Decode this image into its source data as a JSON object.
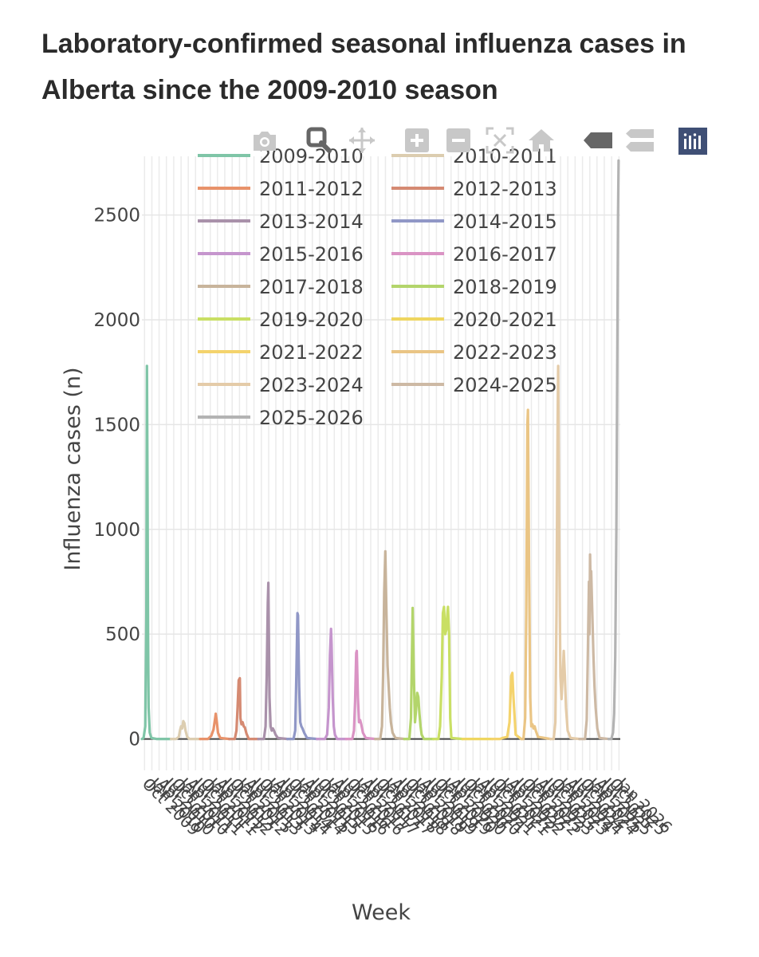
{
  "page_title": "Laboratory-confirmed seasonal influenza cases in Alberta since the 2009-2010 season",
  "modebar": [
    {
      "name": "camera-icon",
      "label": "Download plot as a png"
    },
    {
      "name": "zoom-icon",
      "label": "Zoom"
    },
    {
      "name": "pan-icon",
      "label": "Pan"
    },
    {
      "name": "zoom-in-icon",
      "label": "Zoom in"
    },
    {
      "name": "zoom-out-icon",
      "label": "Zoom out"
    },
    {
      "name": "autoscale-icon",
      "label": "Autoscale"
    },
    {
      "name": "home-icon",
      "label": "Reset axes"
    },
    {
      "name": "spike-closest-icon",
      "label": "Show closest data on hover"
    },
    {
      "name": "spike-compare-icon",
      "label": "Compare data on hover"
    },
    {
      "name": "plotly-logo-icon",
      "label": "Produced with Plotly"
    }
  ],
  "colors": {
    "2009-2010": "#7fc5a7",
    "2010-2011": "#dccdb0",
    "2011-2012": "#e8926a",
    "2012-2013": "#d58a72",
    "2013-2014": "#a991aa",
    "2014-2015": "#9097c6",
    "2015-2016": "#c595cd",
    "2016-2017": "#da93c4",
    "2017-2018": "#c8b49b",
    "2018-2019": "#b3d56b",
    "2019-2020": "#c9df64",
    "2020-2021": "#efd660",
    "2021-2022": "#f4d36c",
    "2022-2023": "#eac585",
    "2023-2024": "#e4cba8",
    "2024-2025": "#cdb9a4",
    "2025-2026": "#b3b3b3"
  },
  "chart_data": {
    "type": "line",
    "title": "",
    "xlabel": "Week",
    "ylabel": "Influenza cases (n)",
    "ylim": [
      -150,
      2780
    ],
    "yticks": [
      0,
      500,
      1000,
      1500,
      2000,
      2500
    ],
    "xlim": [
      "2009-08-29",
      "2026-01-17"
    ],
    "grid": true,
    "legend_position": "top-left (inside plot), two columns",
    "x_tick_labels": [
      "Oct 2009",
      "Jan 2010",
      "Apr 2010",
      "Jul 2010",
      "Oct 2010",
      "Jan 2011",
      "Apr 2011",
      "Jul 2011",
      "Oct 2011",
      "Jan 2012",
      "Apr 2012",
      "Jul 2012",
      "Oct 2012",
      "Jan 2013",
      "Apr 2013",
      "Jul 2013",
      "Oct 2013",
      "Jan 2014",
      "Apr 2014",
      "Jul 2014",
      "Oct 2014",
      "Jan 2015",
      "Apr 2015",
      "Jul 2015",
      "Oct 2015",
      "Jan 2016",
      "Apr 2016",
      "Jul 2016",
      "Oct 2016",
      "Jan 2017",
      "Apr 2017",
      "Jul 2017",
      "Oct 2017",
      "Jan 2018",
      "Apr 2018",
      "Jul 2018",
      "Oct 2018",
      "Jan 2019",
      "Apr 2019",
      "Jul 2019",
      "Oct 2019",
      "Jan 2020",
      "Apr 2020",
      "Jul 2020",
      "Oct 2020",
      "Jan 2021",
      "Apr 2021",
      "Jul 2021",
      "Oct 2021",
      "Jan 2022",
      "Apr 2022",
      "Jul 2022",
      "Oct 2022",
      "Jan 2023",
      "Apr 2023",
      "Jul 2023",
      "Oct 2023",
      "Jan 2024",
      "Apr 2024",
      "Jul 2024",
      "Oct 2024",
      "Jan 2025",
      "Apr 2025",
      "Jul 2025",
      "Oct 2025",
      "Jan 2026"
    ],
    "series": [
      {
        "name": "2009-2010",
        "x": [
          "2009-08-29",
          "2009-09-19",
          "2009-10-10",
          "2009-10-24",
          "2009-10-31",
          "2009-11-07",
          "2009-11-14",
          "2009-11-21",
          "2009-12-05",
          "2009-12-26",
          "2010-02-27",
          "2010-06-26",
          "2010-08-28"
        ],
        "y": [
          0,
          5,
          60,
          600,
          1780,
          1200,
          500,
          150,
          30,
          5,
          0,
          0,
          0
        ]
      },
      {
        "name": "2010-2011",
        "x": [
          "2010-08-28",
          "2010-10-30",
          "2010-12-04",
          "2010-12-18",
          "2011-01-01",
          "2011-01-15",
          "2011-01-29",
          "2011-02-12",
          "2011-02-26",
          "2011-03-19",
          "2011-04-16",
          "2011-08-27"
        ],
        "y": [
          0,
          0,
          10,
          40,
          60,
          50,
          85,
          75,
          40,
          10,
          0,
          0
        ]
      },
      {
        "name": "2011-2012",
        "x": [
          "2011-08-27",
          "2011-12-03",
          "2012-01-14",
          "2012-02-11",
          "2012-03-03",
          "2012-03-10",
          "2012-03-24",
          "2012-04-07",
          "2012-05-05",
          "2012-08-25"
        ],
        "y": [
          0,
          0,
          15,
          45,
          100,
          120,
          80,
          30,
          5,
          0
        ]
      },
      {
        "name": "2012-2013",
        "x": [
          "2012-08-25",
          "2012-11-03",
          "2012-11-24",
          "2012-12-08",
          "2012-12-22",
          "2013-01-05",
          "2013-01-12",
          "2013-01-26",
          "2013-02-09",
          "2013-02-23",
          "2013-03-09",
          "2013-03-30",
          "2013-04-27",
          "2013-08-24"
        ],
        "y": [
          0,
          0,
          40,
          150,
          280,
          290,
          100,
          70,
          80,
          60,
          55,
          25,
          0,
          0
        ]
      },
      {
        "name": "2013-2014",
        "x": [
          "2013-08-24",
          "2013-11-02",
          "2013-11-23",
          "2013-12-07",
          "2013-12-21",
          "2013-12-28",
          "2014-01-11",
          "2014-01-25",
          "2014-02-08",
          "2014-02-22",
          "2014-03-08",
          "2014-03-29",
          "2014-04-26",
          "2014-08-23"
        ],
        "y": [
          0,
          0,
          60,
          300,
          650,
          745,
          200,
          60,
          40,
          50,
          40,
          20,
          5,
          0
        ]
      },
      {
        "name": "2014-2015",
        "x": [
          "2014-08-23",
          "2014-11-08",
          "2014-11-29",
          "2014-12-13",
          "2014-12-27",
          "2015-01-03",
          "2015-01-17",
          "2015-01-31",
          "2015-02-14",
          "2015-02-28",
          "2015-03-21",
          "2015-04-25",
          "2015-08-29"
        ],
        "y": [
          0,
          0,
          40,
          300,
          600,
          590,
          250,
          80,
          60,
          50,
          30,
          5,
          0
        ]
      },
      {
        "name": "2015-2016",
        "x": [
          "2015-08-29",
          "2015-12-05",
          "2016-01-02",
          "2016-01-23",
          "2016-02-06",
          "2016-02-20",
          "2016-02-27",
          "2016-03-12",
          "2016-03-26",
          "2016-04-09",
          "2016-05-07",
          "2016-08-27"
        ],
        "y": [
          0,
          0,
          20,
          150,
          400,
          525,
          450,
          200,
          60,
          20,
          0,
          0
        ]
      },
      {
        "name": "2016-2017",
        "x": [
          "2016-08-27",
          "2016-11-12",
          "2016-12-03",
          "2016-12-17",
          "2016-12-31",
          "2017-01-07",
          "2017-01-21",
          "2017-02-04",
          "2017-02-18",
          "2017-03-04",
          "2017-03-25",
          "2017-04-29",
          "2017-08-26"
        ],
        "y": [
          0,
          0,
          40,
          180,
          410,
          420,
          200,
          80,
          90,
          70,
          30,
          5,
          0
        ]
      },
      {
        "name": "2017-2018",
        "x": [
          "2017-08-26",
          "2017-10-28",
          "2017-11-18",
          "2017-12-02",
          "2017-12-16",
          "2017-12-30",
          "2018-01-13",
          "2018-01-27",
          "2018-02-10",
          "2018-02-24",
          "2018-03-10",
          "2018-03-31",
          "2018-05-05",
          "2018-08-25"
        ],
        "y": [
          0,
          0,
          60,
          300,
          700,
          895,
          600,
          350,
          250,
          150,
          80,
          30,
          5,
          0
        ]
      },
      {
        "name": "2018-2019",
        "x": [
          "2018-08-25",
          "2018-10-27",
          "2018-11-17",
          "2018-12-01",
          "2018-12-08",
          "2018-12-22",
          "2019-01-05",
          "2019-01-19",
          "2019-02-02",
          "2019-02-16",
          "2019-03-02",
          "2019-03-16",
          "2019-03-30",
          "2019-04-27",
          "2019-08-24"
        ],
        "y": [
          0,
          0,
          100,
          450,
          625,
          300,
          80,
          140,
          220,
          200,
          120,
          60,
          20,
          0,
          0
        ]
      },
      {
        "name": "2019-2020",
        "x": [
          "2019-08-24",
          "2019-10-26",
          "2019-11-16",
          "2019-12-07",
          "2019-12-21",
          "2020-01-04",
          "2020-01-18",
          "2020-02-01",
          "2020-02-15",
          "2020-02-22",
          "2020-03-07",
          "2020-03-21",
          "2020-04-04",
          "2020-08-22"
        ],
        "y": [
          0,
          0,
          60,
          300,
          600,
          630,
          500,
          520,
          600,
          630,
          500,
          100,
          5,
          0
        ]
      },
      {
        "name": "2020-2021",
        "x": [
          "2020-08-22",
          "2021-08-28"
        ],
        "y": [
          0,
          0
        ]
      },
      {
        "name": "2021-2022",
        "x": [
          "2021-08-28",
          "2021-12-04",
          "2022-01-08",
          "2022-03-05",
          "2022-04-02",
          "2022-04-23",
          "2022-05-07",
          "2022-05-21",
          "2022-06-18",
          "2022-08-27"
        ],
        "y": [
          0,
          0,
          5,
          10,
          80,
          300,
          315,
          200,
          20,
          0
        ]
      },
      {
        "name": "2022-2023",
        "x": [
          "2022-08-27",
          "2022-09-24",
          "2022-10-15",
          "2022-10-29",
          "2022-11-12",
          "2022-11-19",
          "2022-12-03",
          "2022-12-17",
          "2022-12-31",
          "2023-01-14",
          "2023-01-28",
          "2023-02-11",
          "2023-02-25",
          "2023-03-25",
          "2023-08-26"
        ],
        "y": [
          0,
          0,
          100,
          600,
          1500,
          1570,
          800,
          200,
          60,
          70,
          50,
          60,
          40,
          10,
          0
        ]
      },
      {
        "name": "2023-2024",
        "x": [
          "2023-08-26",
          "2023-10-07",
          "2023-10-28",
          "2023-11-11",
          "2023-11-25",
          "2023-12-02",
          "2023-12-16",
          "2023-12-30",
          "2024-01-13",
          "2024-01-27",
          "2024-02-10",
          "2024-02-24",
          "2024-03-09",
          "2024-03-30",
          "2024-05-04",
          "2024-08-24"
        ],
        "y": [
          0,
          0,
          80,
          600,
          1500,
          1780,
          900,
          300,
          190,
          300,
          420,
          300,
          150,
          40,
          5,
          0
        ]
      },
      {
        "name": "2024-2025",
        "x": [
          "2024-08-24",
          "2024-11-02",
          "2024-11-23",
          "2024-12-07",
          "2024-12-21",
          "2024-12-28",
          "2025-01-04",
          "2025-01-11",
          "2025-01-18",
          "2025-02-01",
          "2025-02-15",
          "2025-03-01",
          "2025-03-15",
          "2025-04-05",
          "2025-05-03",
          "2025-08-23"
        ],
        "y": [
          0,
          0,
          90,
          400,
          750,
          500,
          880,
          700,
          800,
          600,
          400,
          250,
          150,
          50,
          5,
          0
        ]
      },
      {
        "name": "2025-2026",
        "x": [
          "2025-08-23",
          "2025-09-27",
          "2025-10-18",
          "2025-11-01",
          "2025-11-15",
          "2025-11-29",
          "2025-12-13",
          "2025-12-20",
          "2025-12-27"
        ],
        "y": [
          0,
          0,
          30,
          120,
          400,
          1000,
          2000,
          2500,
          2760
        ]
      }
    ]
  }
}
